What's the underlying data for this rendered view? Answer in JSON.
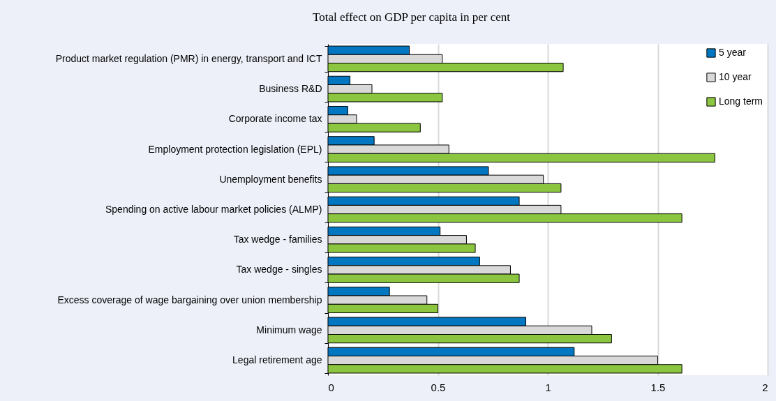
{
  "chart_data": {
    "type": "bar",
    "orientation": "horizontal",
    "title": "Total effect on GDP per capita in per cent",
    "categories": [
      "Product market regulation (PMR) in energy, transport and ICT",
      "Business R&D",
      "Corporate income tax",
      "Employment protection legislation (EPL)",
      "Unemployment benefits",
      "Spending on active labour market policies (ALMP)",
      "Tax wedge - families",
      "Tax wedge - singles",
      "Excess coverage of wage bargaining over union membership",
      "Minimum wage",
      "Legal retirement age"
    ],
    "series": [
      {
        "name": "5 year",
        "color": "#0077c0",
        "values": [
          0.37,
          0.1,
          0.09,
          0.21,
          0.73,
          0.87,
          0.51,
          0.69,
          0.28,
          0.9,
          1.12
        ]
      },
      {
        "name": "10 year",
        "color": "#d9d9d9",
        "values": [
          0.52,
          0.2,
          0.13,
          0.55,
          0.98,
          1.06,
          0.63,
          0.83,
          0.45,
          1.2,
          1.5
        ]
      },
      {
        "name": "Long term",
        "color": "#8cc641",
        "values": [
          1.07,
          0.52,
          0.42,
          1.76,
          1.06,
          1.61,
          0.67,
          0.87,
          0.5,
          1.29,
          1.61
        ]
      }
    ],
    "xlim": [
      0,
      2
    ],
    "xticks": [
      0,
      0.5,
      1,
      1.5,
      2
    ],
    "grid": true,
    "legend": "top right"
  }
}
